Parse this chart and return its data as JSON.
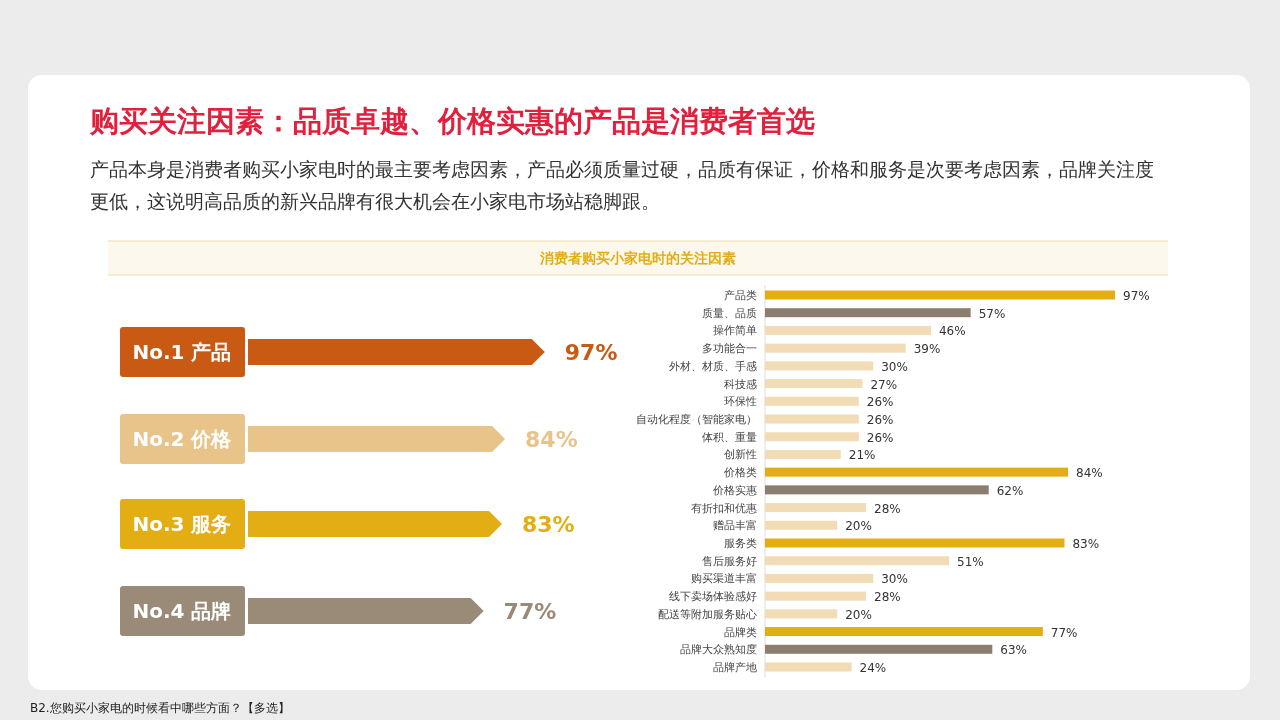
{
  "chart_data": [
    {
      "type": "bar",
      "orientation": "horizontal",
      "title": "购买关注因素：品质卓越、价格实惠的产品是消费者首选",
      "subtitle": "产品本身是消费者购买小家电时的最主要考虑因素，产品必须质量过硬，品质有保证，价格和服务是次要考虑因素，品牌关注度更低，这说明高品质的新兴品牌有很大机会在小家电市场站稳脚跟。",
      "categories": [
        "No.1 产品",
        "No.2 价格",
        "No.3 服务",
        "No.4 品牌"
      ],
      "values": [
        97,
        84,
        83,
        77
      ],
      "colors": [
        "#c85a14",
        "#e8c48a",
        "#e3ad14",
        "#9a8a78"
      ],
      "value_labels": [
        "97%",
        "84%",
        "83%",
        "77%"
      ],
      "annotations": [
        "B2.您购买小家电的时候看中哪些方面？【多选】"
      ]
    },
    {
      "type": "bar",
      "orientation": "horizontal",
      "title": "消费者购买小家电时的关注因素",
      "categories": [
        "产品类",
        "质量、品质",
        "操作简单",
        "多功能合一",
        "外材、材质、手感",
        "科技感",
        "环保性",
        "自动化程度（智能家电）",
        "体积、重量",
        "创新性",
        "价格类",
        "价格实惠",
        "有折扣和优惠",
        "赠品丰富",
        "服务类",
        "售后服务好",
        "购买渠道丰富",
        "线下卖场体验感好",
        "配送等附加服务贴心",
        "品牌类",
        "品牌大众熟知度",
        "品牌产地"
      ],
      "values": [
        97,
        57,
        46,
        39,
        30,
        27,
        26,
        26,
        26,
        21,
        84,
        62,
        28,
        20,
        83,
        51,
        30,
        28,
        20,
        77,
        63,
        24
      ],
      "colors": [
        "#e3ad14",
        "#8c7e6e",
        "#f2dcb5",
        "#f2dcb5",
        "#f2dcb5",
        "#f2dcb5",
        "#f2dcb5",
        "#f2dcb5",
        "#f2dcb5",
        "#f2dcb5",
        "#e3ad14",
        "#8c7e6e",
        "#f2dcb5",
        "#f2dcb5",
        "#e3ad14",
        "#f2dcb5",
        "#f2dcb5",
        "#f2dcb5",
        "#f2dcb5",
        "#e3ad14",
        "#8c7e6e",
        "#f2dcb5"
      ],
      "value_labels": [
        "97%",
        "57%",
        "46%",
        "39%",
        "30%",
        "27%",
        "26%",
        "26%",
        "26%",
        "21%",
        "84%",
        "62%",
        "28%",
        "20%",
        "83%",
        "51%",
        "30%",
        "28%",
        "20%",
        "77%",
        "63%",
        "24%"
      ]
    }
  ]
}
